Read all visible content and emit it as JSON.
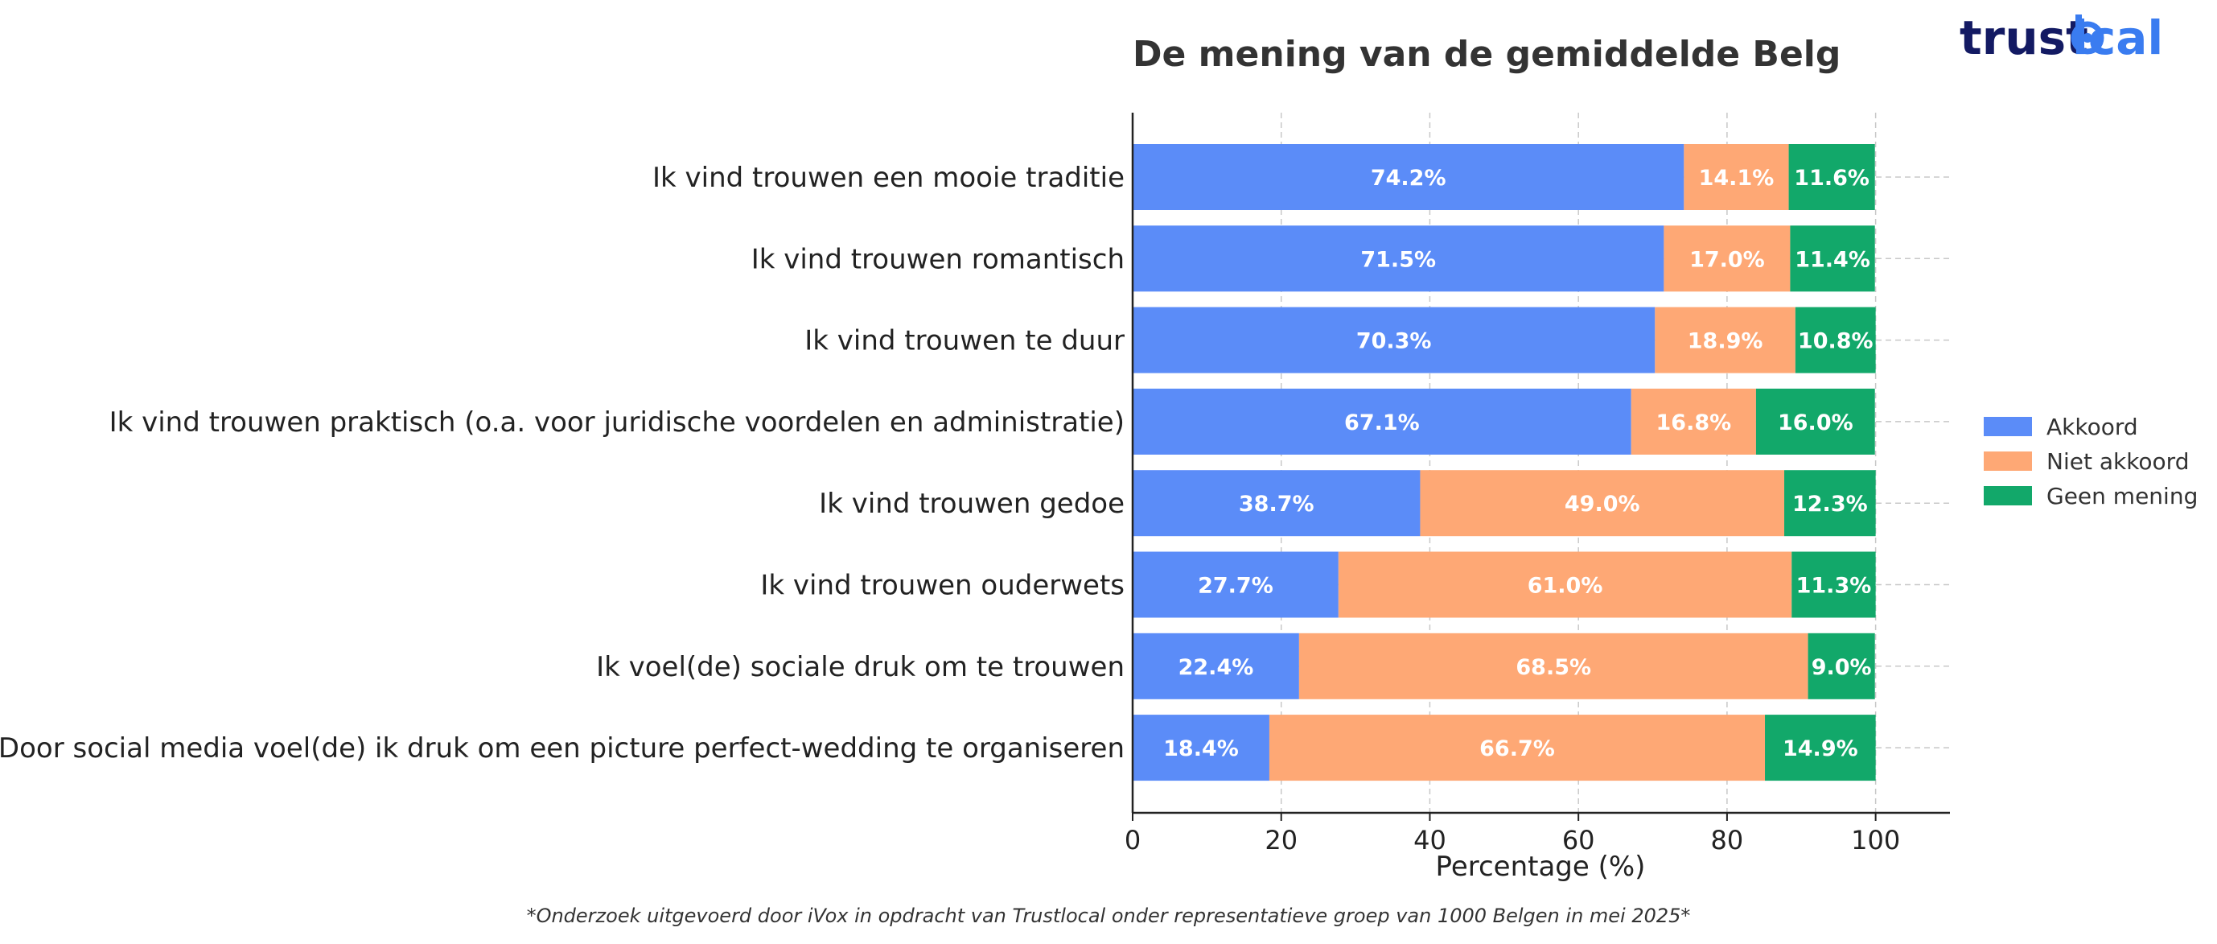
{
  "chart_data": {
    "type": "bar",
    "orientation": "horizontal",
    "stacked": true,
    "title": "De mening van de gemiddelde Belg",
    "xlabel": "Percentage (%)",
    "ylabel": "",
    "xlim": [
      0,
      110
    ],
    "xticks": [
      0,
      20,
      40,
      60,
      80,
      100
    ],
    "grid": true,
    "legend_position": "right",
    "categories": [
      "Ik vind trouwen een mooie traditie",
      "Ik vind trouwen romantisch",
      "Ik vind trouwen te duur",
      "Ik vind trouwen praktisch (o.a. voor juridische voordelen en administratie)",
      "Ik vind trouwen gedoe",
      "Ik vind trouwen ouderwets",
      "Ik voel(de) sociale druk om te trouwen",
      "Door social media voel(de) ik druk om een picture perfect-wedding te organiseren"
    ],
    "series": [
      {
        "name": "Akkoord",
        "color": "#5b8cf8",
        "values": [
          74.2,
          71.5,
          70.3,
          67.1,
          38.7,
          27.7,
          22.4,
          18.4
        ]
      },
      {
        "name": "Niet akkoord",
        "color": "#fea875",
        "values": [
          14.1,
          17.0,
          18.9,
          16.8,
          49.0,
          61.0,
          68.5,
          66.7
        ]
      },
      {
        "name": "Geen mening",
        "color": "#12a86a",
        "values": [
          11.6,
          11.4,
          10.8,
          16.0,
          12.3,
          11.3,
          9.0,
          14.9
        ]
      }
    ]
  },
  "logo": {
    "text_dark": "trust",
    "text_blue": "lcal",
    "dark_color": "#131a63",
    "blue_color": "#3a7cf0"
  },
  "footnote": "*Onderzoek uitgevoerd door iVox in opdracht van Trustlocal onder representatieve groep van 1000 Belgen in mei 2025*"
}
